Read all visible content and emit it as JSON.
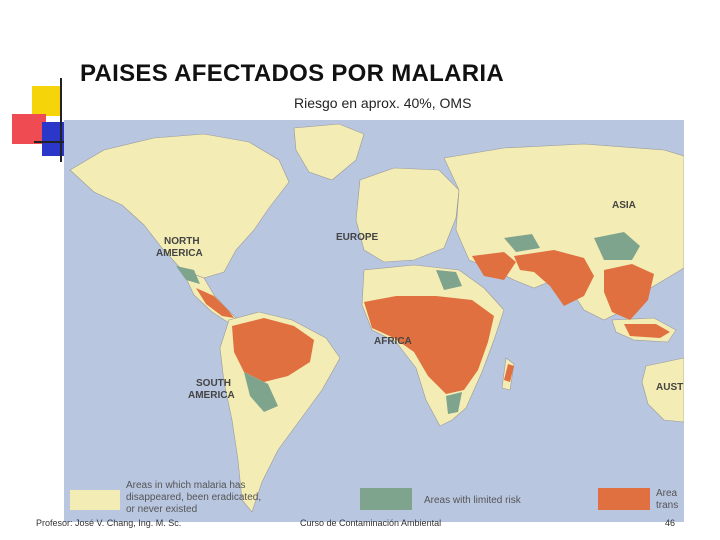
{
  "slide": {
    "title": "PAISES AFECTADOS POR MALARIA",
    "subtitle": "Riesgo en aprox. 40%, OMS"
  },
  "map": {
    "colors": {
      "ocean": "#b8c6e0",
      "land": "#f3ecb4",
      "risk": "#e07040",
      "limited_risk": "#7fa48e",
      "border": "#9a9a9a"
    },
    "labels": {
      "asia": "ASIA",
      "europe": "EUROPE",
      "north_america_1": "NORTH",
      "north_america_2": "AMERICA",
      "africa": "AFRICA",
      "south_america_1": "SOUTH",
      "south_america_2": "AMERICA",
      "australia": "AUST"
    },
    "legend": {
      "disappeared_1": "Areas in which malaria has",
      "disappeared_2": "disappeared, been eradicated,",
      "disappeared_3": "or never existed",
      "limited": "Areas with limited risk",
      "risk_1": "Area",
      "risk_2": "trans"
    }
  },
  "footer": {
    "left": "Profesor: José V. Chang, Ing. M. Sc.",
    "center": "Curso de Contaminación Ambiental",
    "page": "46"
  }
}
